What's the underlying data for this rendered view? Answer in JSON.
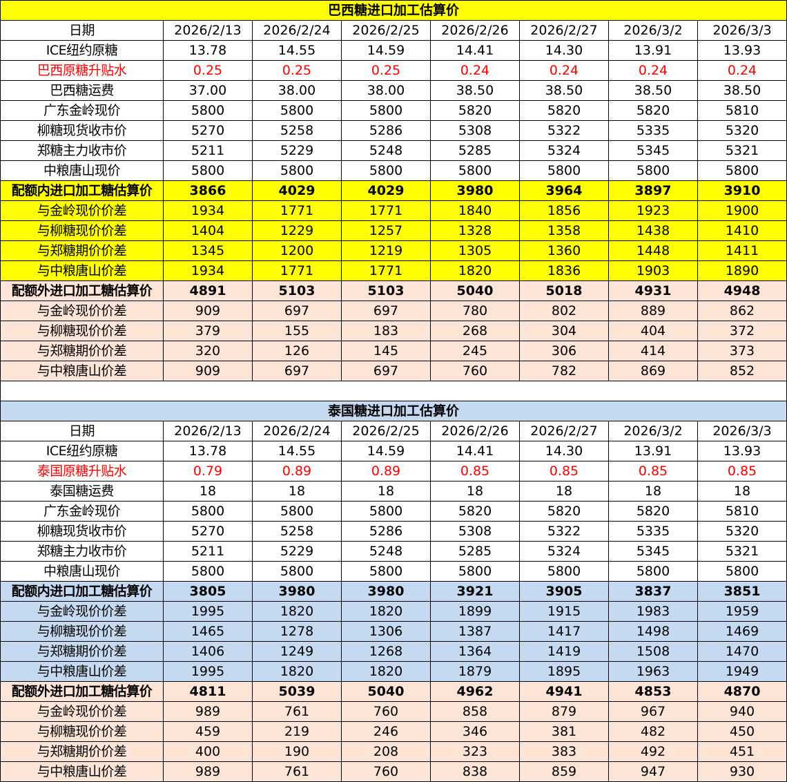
{
  "colors": {
    "brazil_accent": "#ffff00",
    "thai_accent": "#c5d9f1",
    "quota_out": "#fce4d6",
    "highlight_text": "#ff0000"
  },
  "sections": [
    {
      "title": "巴西糖进口加工估算价",
      "accent": "#ffff00",
      "rows": [
        {
          "label": "日期",
          "style": "normal",
          "values": [
            "2026/2/13",
            "2026/2/24",
            "2026/2/25",
            "2026/2/26",
            "2026/2/27",
            "2026/3/2",
            "2026/3/3"
          ]
        },
        {
          "label": "ICE纽约原糖",
          "style": "normal",
          "values": [
            "13.78",
            "14.55",
            "14.59",
            "14.41",
            "14.30",
            "13.91",
            "13.93"
          ]
        },
        {
          "label": "巴西原糖升贴水",
          "style": "red",
          "values": [
            "0.25",
            "0.25",
            "0.25",
            "0.24",
            "0.24",
            "0.24",
            "0.24"
          ]
        },
        {
          "label": "巴西糖运费",
          "style": "normal",
          "values": [
            "37.00",
            "38.00",
            "38.00",
            "38.50",
            "38.50",
            "38.50",
            "38.50"
          ]
        },
        {
          "label": "广东金岭现价",
          "style": "normal",
          "values": [
            "5800",
            "5800",
            "5800",
            "5820",
            "5820",
            "5820",
            "5810"
          ]
        },
        {
          "label": "柳糖现货收市价",
          "style": "normal",
          "values": [
            "5270",
            "5258",
            "5286",
            "5308",
            "5322",
            "5335",
            "5320"
          ]
        },
        {
          "label": "郑糖主力收市价",
          "style": "normal",
          "values": [
            "5211",
            "5229",
            "5248",
            "5285",
            "5324",
            "5345",
            "5321"
          ]
        },
        {
          "label": "中粮唐山现价",
          "style": "normal",
          "values": [
            "5800",
            "5800",
            "5800",
            "5800",
            "5800",
            "5800",
            "5800"
          ]
        },
        {
          "label": "配额内进口加工糖估算价",
          "style": "quota-in-total",
          "values": [
            "3866",
            "4029",
            "4029",
            "3980",
            "3964",
            "3897",
            "3910"
          ]
        },
        {
          "label": "与金岭现价价差",
          "style": "quota-in",
          "values": [
            "1934",
            "1771",
            "1771",
            "1840",
            "1856",
            "1923",
            "1900"
          ]
        },
        {
          "label": "与柳糖现价价差",
          "style": "quota-in",
          "values": [
            "1404",
            "1229",
            "1257",
            "1328",
            "1358",
            "1438",
            "1410"
          ]
        },
        {
          "label": "与郑糖期价价差",
          "style": "quota-in",
          "values": [
            "1345",
            "1200",
            "1219",
            "1305",
            "1360",
            "1448",
            "1411"
          ]
        },
        {
          "label": "与中粮唐山价差",
          "style": "quota-in",
          "values": [
            "1934",
            "1771",
            "1771",
            "1820",
            "1836",
            "1903",
            "1890"
          ]
        },
        {
          "label": "配额外进口加工糖估算价",
          "style": "quota-out-total",
          "values": [
            "4891",
            "5103",
            "5103",
            "5040",
            "5018",
            "4931",
            "4948"
          ]
        },
        {
          "label": "与金岭现价价差",
          "style": "quota-out",
          "values": [
            "909",
            "697",
            "697",
            "780",
            "802",
            "889",
            "862"
          ]
        },
        {
          "label": "与柳糖现价价差",
          "style": "quota-out",
          "values": [
            "379",
            "155",
            "183",
            "268",
            "304",
            "404",
            "372"
          ]
        },
        {
          "label": "与郑糖期价价差",
          "style": "quota-out",
          "values": [
            "320",
            "126",
            "145",
            "245",
            "306",
            "414",
            "373"
          ]
        },
        {
          "label": "与中粮唐山价差",
          "style": "quota-out",
          "values": [
            "909",
            "697",
            "697",
            "760",
            "782",
            "869",
            "852"
          ]
        }
      ]
    },
    {
      "title": "泰国糖进口加工估算价",
      "accent": "#c5d9f1",
      "rows": [
        {
          "label": "日期",
          "style": "normal",
          "values": [
            "2026/2/13",
            "2026/2/24",
            "2026/2/25",
            "2026/2/26",
            "2026/2/27",
            "2026/3/2",
            "2026/3/3"
          ]
        },
        {
          "label": "ICE纽约原糖",
          "style": "normal",
          "values": [
            "13.78",
            "14.55",
            "14.59",
            "14.41",
            "14.30",
            "13.91",
            "13.93"
          ]
        },
        {
          "label": "泰国原糖升贴水",
          "style": "red",
          "values": [
            "0.79",
            "0.89",
            "0.89",
            "0.85",
            "0.85",
            "0.85",
            "0.85"
          ]
        },
        {
          "label": "泰国糖运费",
          "style": "normal",
          "values": [
            "18",
            "18",
            "18",
            "18",
            "18",
            "18",
            "18"
          ]
        },
        {
          "label": "广东金岭现价",
          "style": "normal",
          "values": [
            "5800",
            "5800",
            "5800",
            "5820",
            "5820",
            "5820",
            "5810"
          ]
        },
        {
          "label": "柳糖现货收市价",
          "style": "normal",
          "values": [
            "5270",
            "5258",
            "5286",
            "5308",
            "5322",
            "5335",
            "5320"
          ]
        },
        {
          "label": "郑糖主力收市价",
          "style": "normal",
          "values": [
            "5211",
            "5229",
            "5248",
            "5285",
            "5324",
            "5345",
            "5321"
          ]
        },
        {
          "label": "中粮唐山现价",
          "style": "normal",
          "values": [
            "5800",
            "5800",
            "5800",
            "5800",
            "5800",
            "5800",
            "5800"
          ]
        },
        {
          "label": "配额内进口加工糖估算价",
          "style": "quota-in-total",
          "values": [
            "3805",
            "3980",
            "3980",
            "3921",
            "3905",
            "3837",
            "3851"
          ]
        },
        {
          "label": "与金岭现价价差",
          "style": "quota-in",
          "values": [
            "1995",
            "1820",
            "1820",
            "1899",
            "1915",
            "1983",
            "1959"
          ]
        },
        {
          "label": "与柳糖现价价差",
          "style": "quota-in",
          "values": [
            "1465",
            "1278",
            "1306",
            "1387",
            "1417",
            "1498",
            "1469"
          ]
        },
        {
          "label": "与郑糖期价价差",
          "style": "quota-in",
          "values": [
            "1406",
            "1249",
            "1268",
            "1364",
            "1419",
            "1508",
            "1470"
          ]
        },
        {
          "label": "与中粮唐山价差",
          "style": "quota-in",
          "values": [
            "1995",
            "1820",
            "1820",
            "1879",
            "1895",
            "1963",
            "1949"
          ]
        },
        {
          "label": "配额外进口加工糖估算价",
          "style": "quota-out-total",
          "values": [
            "4811",
            "5039",
            "5040",
            "4962",
            "4941",
            "4853",
            "4870"
          ]
        },
        {
          "label": "与金岭现价价差",
          "style": "quota-out",
          "values": [
            "989",
            "761",
            "760",
            "858",
            "879",
            "967",
            "940"
          ]
        },
        {
          "label": "与柳糖现价价差",
          "style": "quota-out",
          "values": [
            "459",
            "219",
            "246",
            "346",
            "381",
            "482",
            "450"
          ]
        },
        {
          "label": "与郑糖期价价差",
          "style": "quota-out",
          "values": [
            "400",
            "190",
            "208",
            "323",
            "383",
            "492",
            "451"
          ]
        },
        {
          "label": "与中粮唐山价差",
          "style": "quota-out",
          "values": [
            "989",
            "761",
            "760",
            "838",
            "859",
            "947",
            "930"
          ]
        }
      ]
    }
  ]
}
